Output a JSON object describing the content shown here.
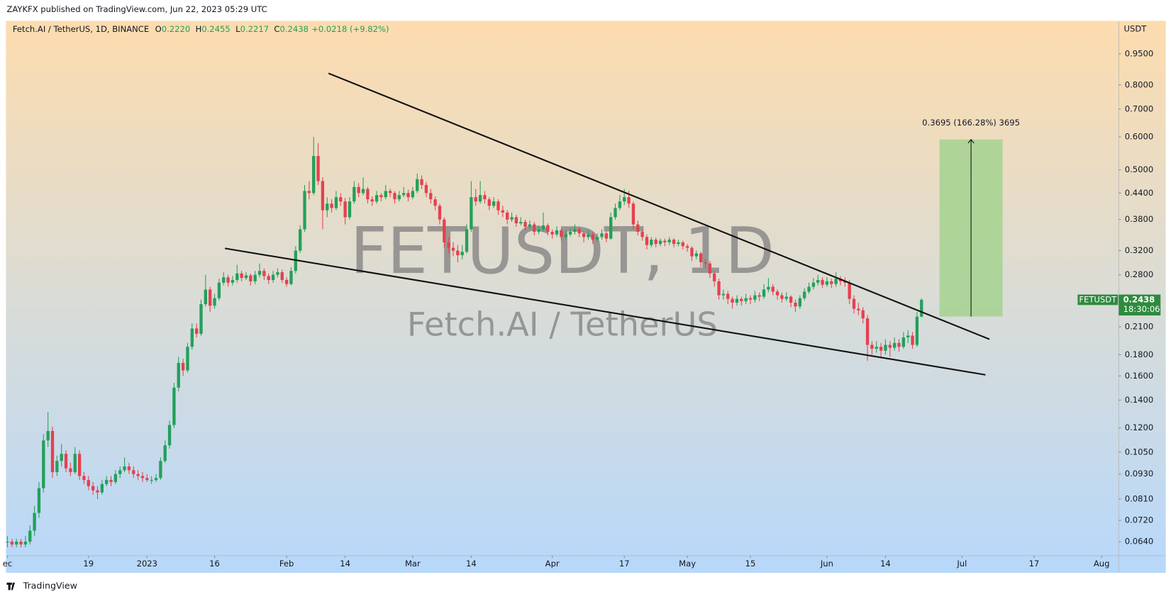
{
  "header": {
    "publisher": "ZAYKFX published on TradingView.com, Jun 22, 2023 05:29 UTC",
    "footer": "TradingView"
  },
  "chart_data": {
    "type": "candlestick",
    "symbol": "Fetch.AI / TetherUS, 1D, BINANCE",
    "ohlc": [
      {
        "name": "O",
        "label": "0.2220"
      },
      {
        "name": "H",
        "label": "0.2455"
      },
      {
        "name": "L",
        "label": "0.2217"
      },
      {
        "name": "C",
        "label": "0.2438"
      }
    ],
    "change": "+0.0218 (+9.82%)",
    "currency": "USDT",
    "watermark": "FETUSDT, 1D",
    "watermark_subtitle": "Fetch.AI / TetherUS",
    "up_color": "#22a05a",
    "down_color": "#e5404f",
    "log_scale": true,
    "grid": false,
    "xlim": [
      -0.33,
      246.8
    ],
    "ylim": [
      0.0592,
      1.14
    ],
    "xticks": [
      {
        "value": 0,
        "label": "ec"
      },
      {
        "value": 18,
        "label": "19"
      },
      {
        "value": 31,
        "label": "2023"
      },
      {
        "value": 46,
        "label": "16"
      },
      {
        "value": 62,
        "label": "Feb"
      },
      {
        "value": 75,
        "label": "14"
      },
      {
        "value": 90,
        "label": "Mar"
      },
      {
        "value": 103,
        "label": "14"
      },
      {
        "value": 121,
        "label": "Apr"
      },
      {
        "value": 137,
        "label": "17"
      },
      {
        "value": 151,
        "label": "May"
      },
      {
        "value": 165,
        "label": "15"
      },
      {
        "value": 182,
        "label": "Jun"
      },
      {
        "value": 195,
        "label": "14"
      },
      {
        "value": 212,
        "label": "Jul"
      },
      {
        "value": 228,
        "label": "17"
      },
      {
        "value": 243,
        "label": "Aug"
      }
    ],
    "yticks": [
      {
        "value": 0.95,
        "label": "0.9500"
      },
      {
        "value": 0.8,
        "label": "0.8000"
      },
      {
        "value": 0.7,
        "label": "0.7000"
      },
      {
        "value": 0.6,
        "label": "0.6000"
      },
      {
        "value": 0.5,
        "label": "0.5000"
      },
      {
        "value": 0.44,
        "label": "0.4400"
      },
      {
        "value": 0.38,
        "label": "0.3800"
      },
      {
        "value": 0.32,
        "label": "0.3200"
      },
      {
        "value": 0.28,
        "label": "0.2800"
      },
      {
        "value": 0.21,
        "label": "0.2100"
      },
      {
        "value": 0.18,
        "label": "0.1800"
      },
      {
        "value": 0.16,
        "label": "0.1600"
      },
      {
        "value": 0.14,
        "label": "0.1400"
      },
      {
        "value": 0.12,
        "label": "0.1200"
      },
      {
        "value": 0.105,
        "label": "0.1050"
      },
      {
        "value": 0.093,
        "label": "0.0930"
      },
      {
        "value": 0.081,
        "label": "0.0810"
      },
      {
        "value": 0.072,
        "label": "0.0720"
      },
      {
        "value": 0.064,
        "label": "0.0640"
      }
    ],
    "candles": [
      [
        0.064,
        0.066,
        0.062,
        0.064
      ],
      [
        0.064,
        0.065,
        0.062,
        0.063
      ],
      [
        0.063,
        0.065,
        0.062,
        0.064
      ],
      [
        0.064,
        0.065,
        0.062,
        0.063
      ],
      [
        0.063,
        0.066,
        0.062,
        0.064
      ],
      [
        0.064,
        0.07,
        0.063,
        0.068
      ],
      [
        0.068,
        0.078,
        0.066,
        0.075
      ],
      [
        0.075,
        0.089,
        0.073,
        0.086
      ],
      [
        0.086,
        0.116,
        0.084,
        0.112
      ],
      [
        0.112,
        0.131,
        0.108,
        0.118
      ],
      [
        0.118,
        0.121,
        0.091,
        0.094
      ],
      [
        0.094,
        0.103,
        0.092,
        0.1
      ],
      [
        0.1,
        0.11,
        0.097,
        0.104
      ],
      [
        0.104,
        0.106,
        0.094,
        0.096
      ],
      [
        0.096,
        0.099,
        0.092,
        0.094
      ],
      [
        0.094,
        0.108,
        0.093,
        0.104
      ],
      [
        0.104,
        0.106,
        0.09,
        0.092
      ],
      [
        0.092,
        0.094,
        0.088,
        0.09
      ],
      [
        0.09,
        0.092,
        0.085,
        0.087
      ],
      [
        0.087,
        0.089,
        0.083,
        0.085
      ],
      [
        0.085,
        0.087,
        0.081,
        0.084
      ],
      [
        0.084,
        0.09,
        0.083,
        0.088
      ],
      [
        0.088,
        0.092,
        0.087,
        0.09
      ],
      [
        0.09,
        0.092,
        0.087,
        0.089
      ],
      [
        0.089,
        0.095,
        0.088,
        0.093
      ],
      [
        0.093,
        0.097,
        0.091,
        0.095
      ],
      [
        0.095,
        0.102,
        0.094,
        0.097
      ],
      [
        0.097,
        0.099,
        0.093,
        0.095
      ],
      [
        0.095,
        0.097,
        0.091,
        0.093
      ],
      [
        0.093,
        0.095,
        0.09,
        0.092
      ],
      [
        0.092,
        0.094,
        0.089,
        0.091
      ],
      [
        0.091,
        0.093,
        0.089,
        0.09
      ],
      [
        0.09,
        0.092,
        0.088,
        0.09
      ],
      [
        0.09,
        0.093,
        0.089,
        0.091
      ],
      [
        0.091,
        0.102,
        0.09,
        0.1
      ],
      [
        0.1,
        0.112,
        0.099,
        0.109
      ],
      [
        0.109,
        0.125,
        0.107,
        0.122
      ],
      [
        0.122,
        0.154,
        0.12,
        0.15
      ],
      [
        0.15,
        0.178,
        0.147,
        0.172
      ],
      [
        0.172,
        0.176,
        0.16,
        0.165
      ],
      [
        0.165,
        0.192,
        0.163,
        0.188
      ],
      [
        0.188,
        0.214,
        0.185,
        0.208
      ],
      [
        0.208,
        0.214,
        0.198,
        0.202
      ],
      [
        0.202,
        0.244,
        0.2,
        0.238
      ],
      [
        0.238,
        0.28,
        0.235,
        0.258
      ],
      [
        0.258,
        0.262,
        0.228,
        0.236
      ],
      [
        0.236,
        0.252,
        0.232,
        0.246
      ],
      [
        0.246,
        0.274,
        0.243,
        0.268
      ],
      [
        0.268,
        0.284,
        0.264,
        0.276
      ],
      [
        0.276,
        0.28,
        0.262,
        0.268
      ],
      [
        0.268,
        0.278,
        0.264,
        0.272
      ],
      [
        0.272,
        0.296,
        0.268,
        0.282
      ],
      [
        0.282,
        0.286,
        0.27,
        0.275
      ],
      [
        0.275,
        0.284,
        0.272,
        0.279
      ],
      [
        0.279,
        0.282,
        0.264,
        0.27
      ],
      [
        0.27,
        0.286,
        0.266,
        0.28
      ],
      [
        0.28,
        0.298,
        0.276,
        0.286
      ],
      [
        0.286,
        0.29,
        0.272,
        0.278
      ],
      [
        0.278,
        0.282,
        0.266,
        0.272
      ],
      [
        0.272,
        0.286,
        0.268,
        0.28
      ],
      [
        0.28,
        0.29,
        0.276,
        0.284
      ],
      [
        0.284,
        0.288,
        0.268,
        0.272
      ],
      [
        0.272,
        0.276,
        0.262,
        0.266
      ],
      [
        0.266,
        0.292,
        0.264,
        0.286
      ],
      [
        0.286,
        0.328,
        0.282,
        0.32
      ],
      [
        0.32,
        0.368,
        0.316,
        0.36
      ],
      [
        0.36,
        0.46,
        0.355,
        0.445
      ],
      [
        0.445,
        0.47,
        0.425,
        0.44
      ],
      [
        0.44,
        0.6,
        0.435,
        0.54
      ],
      [
        0.54,
        0.58,
        0.46,
        0.47
      ],
      [
        0.47,
        0.48,
        0.36,
        0.4
      ],
      [
        0.4,
        0.43,
        0.385,
        0.415
      ],
      [
        0.415,
        0.425,
        0.395,
        0.405
      ],
      [
        0.405,
        0.445,
        0.4,
        0.43
      ],
      [
        0.43,
        0.44,
        0.41,
        0.42
      ],
      [
        0.42,
        0.428,
        0.37,
        0.385
      ],
      [
        0.385,
        0.43,
        0.38,
        0.42
      ],
      [
        0.42,
        0.47,
        0.415,
        0.455
      ],
      [
        0.455,
        0.465,
        0.43,
        0.44
      ],
      [
        0.44,
        0.48,
        0.435,
        0.45
      ],
      [
        0.45,
        0.455,
        0.415,
        0.425
      ],
      [
        0.425,
        0.432,
        0.41,
        0.42
      ],
      [
        0.42,
        0.445,
        0.415,
        0.435
      ],
      [
        0.435,
        0.44,
        0.42,
        0.43
      ],
      [
        0.43,
        0.46,
        0.425,
        0.445
      ],
      [
        0.445,
        0.45,
        0.43,
        0.44
      ],
      [
        0.44,
        0.445,
        0.415,
        0.425
      ],
      [
        0.425,
        0.445,
        0.42,
        0.435
      ],
      [
        0.435,
        0.455,
        0.43,
        0.44
      ],
      [
        0.44,
        0.448,
        0.42,
        0.43
      ],
      [
        0.43,
        0.455,
        0.425,
        0.445
      ],
      [
        0.445,
        0.49,
        0.44,
        0.475
      ],
      [
        0.475,
        0.485,
        0.45,
        0.46
      ],
      [
        0.46,
        0.468,
        0.43,
        0.44
      ],
      [
        0.44,
        0.45,
        0.415,
        0.425
      ],
      [
        0.425,
        0.432,
        0.4,
        0.41
      ],
      [
        0.41,
        0.415,
        0.37,
        0.38
      ],
      [
        0.38,
        0.385,
        0.325,
        0.335
      ],
      [
        0.335,
        0.345,
        0.315,
        0.325
      ],
      [
        0.325,
        0.335,
        0.31,
        0.32
      ],
      [
        0.32,
        0.33,
        0.3,
        0.312
      ],
      [
        0.312,
        0.33,
        0.305,
        0.318
      ],
      [
        0.318,
        0.37,
        0.315,
        0.36
      ],
      [
        0.36,
        0.47,
        0.355,
        0.43
      ],
      [
        0.43,
        0.45,
        0.41,
        0.42
      ],
      [
        0.42,
        0.47,
        0.415,
        0.435
      ],
      [
        0.435,
        0.445,
        0.415,
        0.425
      ],
      [
        0.425,
        0.43,
        0.4,
        0.41
      ],
      [
        0.41,
        0.43,
        0.405,
        0.42
      ],
      [
        0.42,
        0.425,
        0.39,
        0.4
      ],
      [
        0.4,
        0.41,
        0.385,
        0.395
      ],
      [
        0.395,
        0.4,
        0.37,
        0.38
      ],
      [
        0.38,
        0.395,
        0.375,
        0.385
      ],
      [
        0.385,
        0.39,
        0.365,
        0.372
      ],
      [
        0.372,
        0.385,
        0.368,
        0.375
      ],
      [
        0.375,
        0.38,
        0.358,
        0.365
      ],
      [
        0.365,
        0.378,
        0.36,
        0.37
      ],
      [
        0.37,
        0.375,
        0.348,
        0.355
      ],
      [
        0.355,
        0.368,
        0.35,
        0.36
      ],
      [
        0.36,
        0.395,
        0.355,
        0.368
      ],
      [
        0.368,
        0.372,
        0.348,
        0.355
      ],
      [
        0.355,
        0.36,
        0.342,
        0.35
      ],
      [
        0.35,
        0.366,
        0.346,
        0.358
      ],
      [
        0.358,
        0.362,
        0.338,
        0.345
      ],
      [
        0.345,
        0.358,
        0.34,
        0.35
      ],
      [
        0.35,
        0.362,
        0.346,
        0.355
      ],
      [
        0.355,
        0.37,
        0.35,
        0.36
      ],
      [
        0.36,
        0.365,
        0.345,
        0.352
      ],
      [
        0.352,
        0.356,
        0.335,
        0.345
      ],
      [
        0.345,
        0.358,
        0.34,
        0.35
      ],
      [
        0.35,
        0.355,
        0.332,
        0.34
      ],
      [
        0.34,
        0.352,
        0.336,
        0.345
      ],
      [
        0.345,
        0.36,
        0.34,
        0.352
      ],
      [
        0.352,
        0.356,
        0.335,
        0.342
      ],
      [
        0.342,
        0.395,
        0.34,
        0.385
      ],
      [
        0.385,
        0.415,
        0.38,
        0.405
      ],
      [
        0.405,
        0.435,
        0.4,
        0.42
      ],
      [
        0.42,
        0.45,
        0.412,
        0.43
      ],
      [
        0.43,
        0.445,
        0.405,
        0.415
      ],
      [
        0.415,
        0.42,
        0.36,
        0.37
      ],
      [
        0.37,
        0.378,
        0.348,
        0.355
      ],
      [
        0.355,
        0.36,
        0.338,
        0.345
      ],
      [
        0.345,
        0.35,
        0.322,
        0.33
      ],
      [
        0.33,
        0.345,
        0.326,
        0.34
      ],
      [
        0.34,
        0.344,
        0.326,
        0.332
      ],
      [
        0.332,
        0.342,
        0.328,
        0.338
      ],
      [
        0.338,
        0.342,
        0.328,
        0.335
      ],
      [
        0.335,
        0.345,
        0.33,
        0.34
      ],
      [
        0.34,
        0.343,
        0.326,
        0.332
      ],
      [
        0.332,
        0.34,
        0.328,
        0.335
      ],
      [
        0.335,
        0.338,
        0.322,
        0.328
      ],
      [
        0.328,
        0.332,
        0.318,
        0.325
      ],
      [
        0.325,
        0.328,
        0.302,
        0.31
      ],
      [
        0.31,
        0.32,
        0.305,
        0.315
      ],
      [
        0.315,
        0.318,
        0.292,
        0.3
      ],
      [
        0.3,
        0.306,
        0.29,
        0.298
      ],
      [
        0.298,
        0.302,
        0.275,
        0.282
      ],
      [
        0.282,
        0.286,
        0.262,
        0.27
      ],
      [
        0.27,
        0.274,
        0.244,
        0.25
      ],
      [
        0.25,
        0.258,
        0.244,
        0.252
      ],
      [
        0.252,
        0.256,
        0.238,
        0.245
      ],
      [
        0.245,
        0.248,
        0.232,
        0.24
      ],
      [
        0.24,
        0.25,
        0.236,
        0.245
      ],
      [
        0.245,
        0.248,
        0.236,
        0.242
      ],
      [
        0.242,
        0.252,
        0.238,
        0.246
      ],
      [
        0.246,
        0.25,
        0.238,
        0.244
      ],
      [
        0.244,
        0.256,
        0.24,
        0.25
      ],
      [
        0.25,
        0.254,
        0.242,
        0.248
      ],
      [
        0.248,
        0.266,
        0.245,
        0.258
      ],
      [
        0.258,
        0.275,
        0.254,
        0.262
      ],
      [
        0.262,
        0.266,
        0.25,
        0.255
      ],
      [
        0.255,
        0.258,
        0.244,
        0.25
      ],
      [
        0.25,
        0.254,
        0.24,
        0.245
      ],
      [
        0.245,
        0.254,
        0.242,
        0.248
      ],
      [
        0.248,
        0.25,
        0.234,
        0.24
      ],
      [
        0.24,
        0.244,
        0.228,
        0.235
      ],
      [
        0.235,
        0.25,
        0.232,
        0.246
      ],
      [
        0.246,
        0.26,
        0.243,
        0.255
      ],
      [
        0.255,
        0.268,
        0.252,
        0.262
      ],
      [
        0.262,
        0.275,
        0.258,
        0.268
      ],
      [
        0.268,
        0.28,
        0.264,
        0.272
      ],
      [
        0.272,
        0.276,
        0.26,
        0.265
      ],
      [
        0.265,
        0.276,
        0.262,
        0.27
      ],
      [
        0.27,
        0.274,
        0.26,
        0.266
      ],
      [
        0.266,
        0.284,
        0.262,
        0.274
      ],
      [
        0.274,
        0.278,
        0.264,
        0.27
      ],
      [
        0.27,
        0.276,
        0.262,
        0.268
      ],
      [
        0.268,
        0.272,
        0.238,
        0.245
      ],
      [
        0.245,
        0.25,
        0.226,
        0.232
      ],
      [
        0.232,
        0.24,
        0.224,
        0.23
      ],
      [
        0.23,
        0.234,
        0.214,
        0.22
      ],
      [
        0.22,
        0.224,
        0.174,
        0.19
      ],
      [
        0.19,
        0.194,
        0.18,
        0.186
      ],
      [
        0.186,
        0.194,
        0.182,
        0.188
      ],
      [
        0.188,
        0.192,
        0.178,
        0.184
      ],
      [
        0.184,
        0.196,
        0.18,
        0.19
      ],
      [
        0.19,
        0.194,
        0.178,
        0.187
      ],
      [
        0.187,
        0.198,
        0.184,
        0.192
      ],
      [
        0.192,
        0.196,
        0.183,
        0.188
      ],
      [
        0.188,
        0.204,
        0.186,
        0.198
      ],
      [
        0.198,
        0.206,
        0.192,
        0.2
      ],
      [
        0.2,
        0.204,
        0.186,
        0.19
      ],
      [
        0.19,
        0.228,
        0.188,
        0.222
      ],
      [
        0.222,
        0.2455,
        0.2217,
        0.2438
      ]
    ],
    "trendlines": [
      {
        "x": [
          71.3,
          218.1
        ],
        "y": [
          0.853,
          0.196
        ]
      },
      {
        "x": [
          48.3,
          217.2
        ],
        "y": [
          0.324,
          0.161
        ]
      }
    ],
    "measure": {
      "x": [
        207,
        221
      ],
      "y": [
        0.2222,
        0.5917
      ],
      "label": "0.3695 (166.28%) 3695",
      "color": "#a5d28f"
    },
    "last_price": {
      "symbol": "FETUSDT",
      "label": "0.2438",
      "countdown": "18:30:06",
      "color": "#2e8b3e"
    }
  }
}
